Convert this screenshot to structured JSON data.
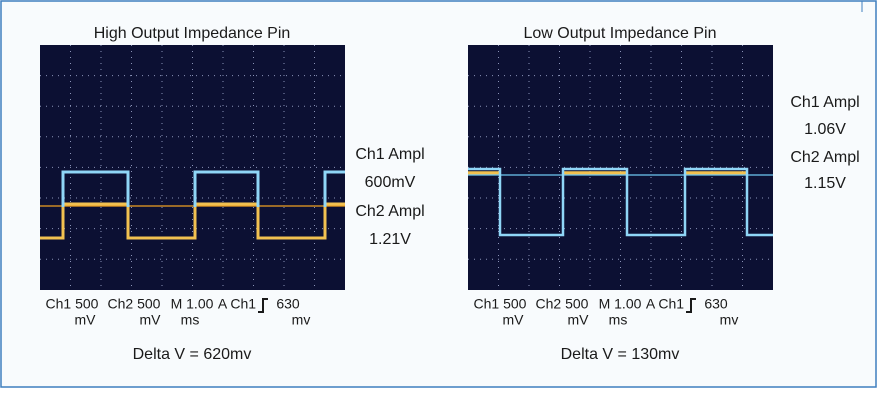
{
  "panels": [
    {
      "title": "High Output Impedance Pin",
      "annotations": [
        "Ch1 Ampl",
        "600mV",
        "Ch2 Ampl",
        "1.21V"
      ],
      "readouts": [
        {
          "top": "Ch1 500",
          "bottom": "mV"
        },
        {
          "top": "Ch2 500",
          "bottom": "mV"
        },
        {
          "top": "M 1.00",
          "bottom": "ms"
        },
        {
          "top": "A Ch1"
        },
        {
          "top": "630",
          "bottom": "mv"
        }
      ],
      "delta": "Delta V = 620mv"
    },
    {
      "title": "Low Output Impedance Pin",
      "annotations": [
        "Ch1 Ampl",
        "1.06V",
        "Ch2 Ampl",
        "1.15V"
      ],
      "readouts": [
        {
          "top": "Ch1 500",
          "bottom": "mV"
        },
        {
          "top": "Ch2 500",
          "bottom": "mV"
        },
        {
          "top": "M 1.00",
          "bottom": "ms"
        },
        {
          "top": "A Ch1"
        },
        {
          "top": "630",
          "bottom": "mv"
        }
      ],
      "delta": "Delta V = 130mv"
    }
  ]
}
